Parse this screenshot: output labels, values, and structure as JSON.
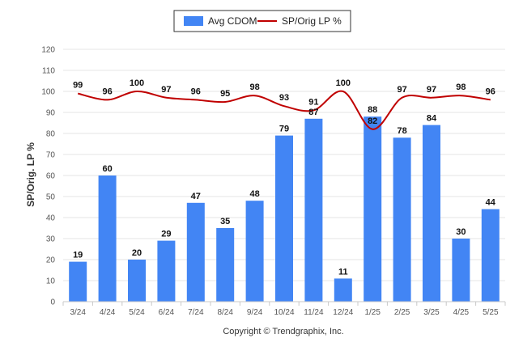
{
  "chart_data": {
    "type": "bar",
    "categories": [
      "3/24",
      "4/24",
      "5/24",
      "6/24",
      "7/24",
      "8/24",
      "9/24",
      "10/24",
      "11/24",
      "12/24",
      "1/25",
      "2/25",
      "3/25",
      "4/25",
      "5/25"
    ],
    "series": [
      {
        "name": "Avg CDOM",
        "type": "bar",
        "color": "#4285f4",
        "values": [
          19,
          60,
          20,
          29,
          47,
          35,
          48,
          79,
          87,
          11,
          88,
          78,
          84,
          30,
          44
        ]
      },
      {
        "name": "SP/Orig LP %",
        "type": "line",
        "color": "#c00000",
        "values": [
          99,
          96,
          100,
          97,
          96,
          95,
          98,
          93,
          91,
          100,
          82,
          97,
          97,
          98,
          96
        ]
      }
    ],
    "ylabel": "SP/Orig. LP %",
    "ylim": [
      0,
      120
    ],
    "yticks": [
      0,
      10,
      20,
      30,
      40,
      50,
      60,
      70,
      80,
      90,
      100,
      110,
      120
    ],
    "grid": true,
    "legend_position": "top-center"
  },
  "legend": {
    "items": [
      "Avg CDOM",
      "SP/Orig LP %"
    ]
  },
  "footer": {
    "copyright": "Copyright © Trendgraphix, Inc."
  }
}
